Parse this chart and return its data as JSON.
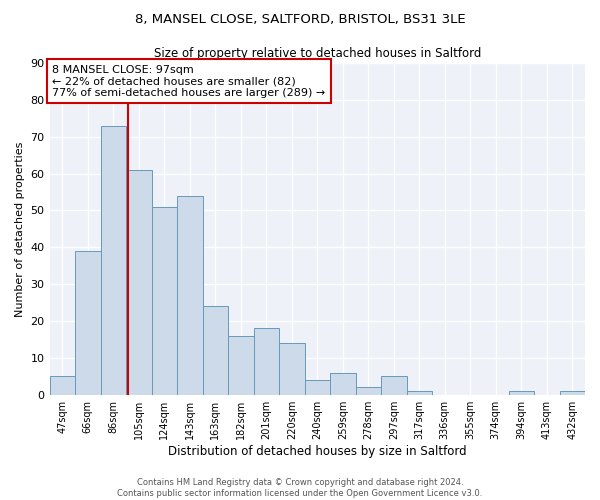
{
  "title": "8, MANSEL CLOSE, SALTFORD, BRISTOL, BS31 3LE",
  "subtitle": "Size of property relative to detached houses in Saltford",
  "xlabel": "Distribution of detached houses by size in Saltford",
  "ylabel": "Number of detached properties",
  "bin_labels": [
    "47sqm",
    "66sqm",
    "86sqm",
    "105sqm",
    "124sqm",
    "143sqm",
    "163sqm",
    "182sqm",
    "201sqm",
    "220sqm",
    "240sqm",
    "259sqm",
    "278sqm",
    "297sqm",
    "317sqm",
    "336sqm",
    "355sqm",
    "374sqm",
    "394sqm",
    "413sqm",
    "432sqm"
  ],
  "bar_heights": [
    5,
    39,
    73,
    61,
    51,
    54,
    24,
    16,
    18,
    14,
    4,
    6,
    2,
    5,
    1,
    0,
    0,
    0,
    1,
    0,
    1
  ],
  "bar_color": "#ccdaea",
  "bar_edge_color": "#6699bb",
  "vline_x_idx": 2.58,
  "vline_color": "#cc0000",
  "annotation_text": "8 MANSEL CLOSE: 97sqm\n← 22% of detached houses are smaller (82)\n77% of semi-detached houses are larger (289) →",
  "annotation_box_color": "#ffffff",
  "annotation_box_edge": "#cc0000",
  "ylim": [
    0,
    90
  ],
  "yticks": [
    0,
    10,
    20,
    30,
    40,
    50,
    60,
    70,
    80,
    90
  ],
  "footer_text": "Contains HM Land Registry data © Crown copyright and database right 2024.\nContains public sector information licensed under the Open Government Licence v3.0.",
  "bg_color": "#ffffff",
  "plot_bg_color": "#eef2f8"
}
